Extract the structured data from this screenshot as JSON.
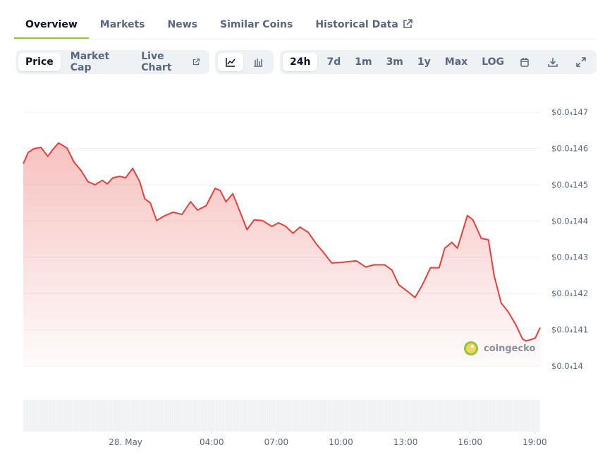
{
  "tabs": [
    "Overview",
    "Markets",
    "News",
    "Similar Coins",
    "Historical Data"
  ],
  "views": [
    "Price",
    "Market Cap",
    "Live Chart"
  ],
  "ranges": [
    "24h",
    "7d",
    "1m",
    "3m",
    "1y",
    "Max",
    "LOG"
  ],
  "watermark": "coingecko",
  "chart_data": {
    "type": "line",
    "color": "#e5403a",
    "grid": true,
    "x": [
      -4.75,
      -4.52,
      -4.26,
      -3.93,
      -3.61,
      -3.38,
      -3.11,
      -2.72,
      -2.39,
      -2.07,
      -1.74,
      -1.41,
      -1.08,
      -0.85,
      -0.59,
      -0.26,
      0,
      0.33,
      0.66,
      0.89,
      1.15,
      1.44,
      1.77,
      2.2,
      2.62,
      3.02,
      3.34,
      3.74,
      4.16,
      4.39,
      4.66,
      4.98,
      5.31,
      5.64,
      5.97,
      6.36,
      6.79,
      7.11,
      7.44,
      7.77,
      8.1,
      8.49,
      8.85,
      9.18,
      9.57,
      10.07,
      10.39,
      10.72,
      11.15,
      11.54,
      12.03,
      12.36,
      12.69,
      13.11,
      13.44,
      13.77,
      14.16,
      14.56,
      14.82,
      15.15,
      15.41,
      15.87,
      16.13,
      16.52,
      16.85,
      17.11,
      17.44,
      17.77,
      18.1,
      18.43,
      18.59,
      18.82,
      19.02,
      19.25
    ],
    "values": [
      1.4558e-05,
      1.4589e-05,
      1.4599e-05,
      1.4603e-05,
      1.4578e-05,
      1.4597e-05,
      1.4615e-05,
      1.4601e-05,
      1.4562e-05,
      1.4539e-05,
      1.4508e-05,
      1.45e-05,
      1.4512e-05,
      1.4502e-05,
      1.4519e-05,
      1.4523e-05,
      1.4519e-05,
      1.4545e-05,
      1.4508e-05,
      1.4461e-05,
      1.445e-05,
      1.4401e-05,
      1.4413e-05,
      1.4424e-05,
      1.4418e-05,
      1.4453e-05,
      1.443e-05,
      1.4442e-05,
      1.449e-05,
      1.4484e-05,
      1.4453e-05,
      1.4475e-05,
      1.4426e-05,
      1.4376e-05,
      1.4403e-05,
      1.4401e-05,
      1.4385e-05,
      1.4395e-05,
      1.4385e-05,
      1.4366e-05,
      1.4383e-05,
      1.4368e-05,
      1.4337e-05,
      1.4314e-05,
      1.4284e-05,
      1.4286e-05,
      1.4288e-05,
      1.429e-05,
      1.4273e-05,
      1.4279e-05,
      1.4279e-05,
      1.4265e-05,
      1.4224e-05,
      1.4205e-05,
      1.4189e-05,
      1.4222e-05,
      1.4271e-05,
      1.4271e-05,
      1.4325e-05,
      1.4341e-05,
      1.4325e-05,
      1.4415e-05,
      1.4403e-05,
      1.4352e-05,
      1.4348e-05,
      1.4251e-05,
      1.4174e-05,
      1.4149e-05,
      1.4116e-05,
      1.4075e-05,
      1.4069e-05,
      1.4073e-05,
      1.4077e-05,
      1.4106e-05
    ],
    "xlim": [
      -4.75,
      19.25
    ],
    "xticks": [
      {
        "value": 0,
        "label": "28. May"
      },
      {
        "value": 4,
        "label": "04:00"
      },
      {
        "value": 7,
        "label": "07:00"
      },
      {
        "value": 10,
        "label": "10:00"
      },
      {
        "value": 13,
        "label": "13:00"
      },
      {
        "value": 16,
        "label": "16:00"
      },
      {
        "value": 19,
        "label": "19:00"
      }
    ],
    "ylim": [
      1.4e-05,
      1.47e-05
    ],
    "yticks": [
      {
        "value": 1.4e-05,
        "label": "$0.0₄14"
      },
      {
        "value": 1.41e-05,
        "label": "$0.0₄141"
      },
      {
        "value": 1.42e-05,
        "label": "$0.0₄142"
      },
      {
        "value": 1.43e-05,
        "label": "$0.0₄143"
      },
      {
        "value": 1.44e-05,
        "label": "$0.0₄144"
      },
      {
        "value": 1.45e-05,
        "label": "$0.0₄145"
      },
      {
        "value": 1.46e-05,
        "label": "$0.0₄146"
      },
      {
        "value": 1.47e-05,
        "label": "$0.0₄147"
      }
    ]
  }
}
